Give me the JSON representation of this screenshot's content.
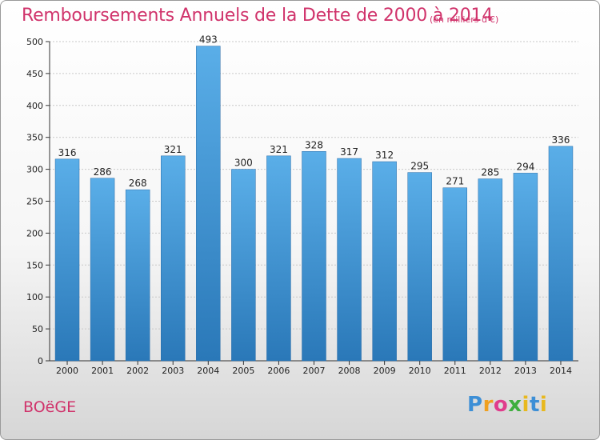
{
  "header": {
    "title": "Remboursements Annuels de la Dette de 2000 à 2014",
    "unit": "(en milliers d'€)"
  },
  "footer": {
    "city": "BOëGE",
    "logo": "Proxiti"
  },
  "colors": {
    "accent": "#d0336b",
    "bar_top": "#5aaee8",
    "bar_bottom": "#2a78b8"
  },
  "chart_data": {
    "type": "bar",
    "title": "Remboursements Annuels de la Dette de 2000 à 2014",
    "xlabel": "",
    "ylabel": "",
    "ylim": [
      0,
      500
    ],
    "yticks": [
      0,
      50,
      100,
      150,
      200,
      250,
      300,
      350,
      400,
      450,
      500
    ],
    "grid": true,
    "categories": [
      "2000",
      "2001",
      "2002",
      "2003",
      "2004",
      "2005",
      "2006",
      "2007",
      "2008",
      "2009",
      "2010",
      "2011",
      "2012",
      "2013",
      "2014"
    ],
    "values": [
      316,
      286,
      268,
      321,
      493,
      300,
      321,
      328,
      317,
      312,
      295,
      271,
      285,
      294,
      336
    ]
  }
}
